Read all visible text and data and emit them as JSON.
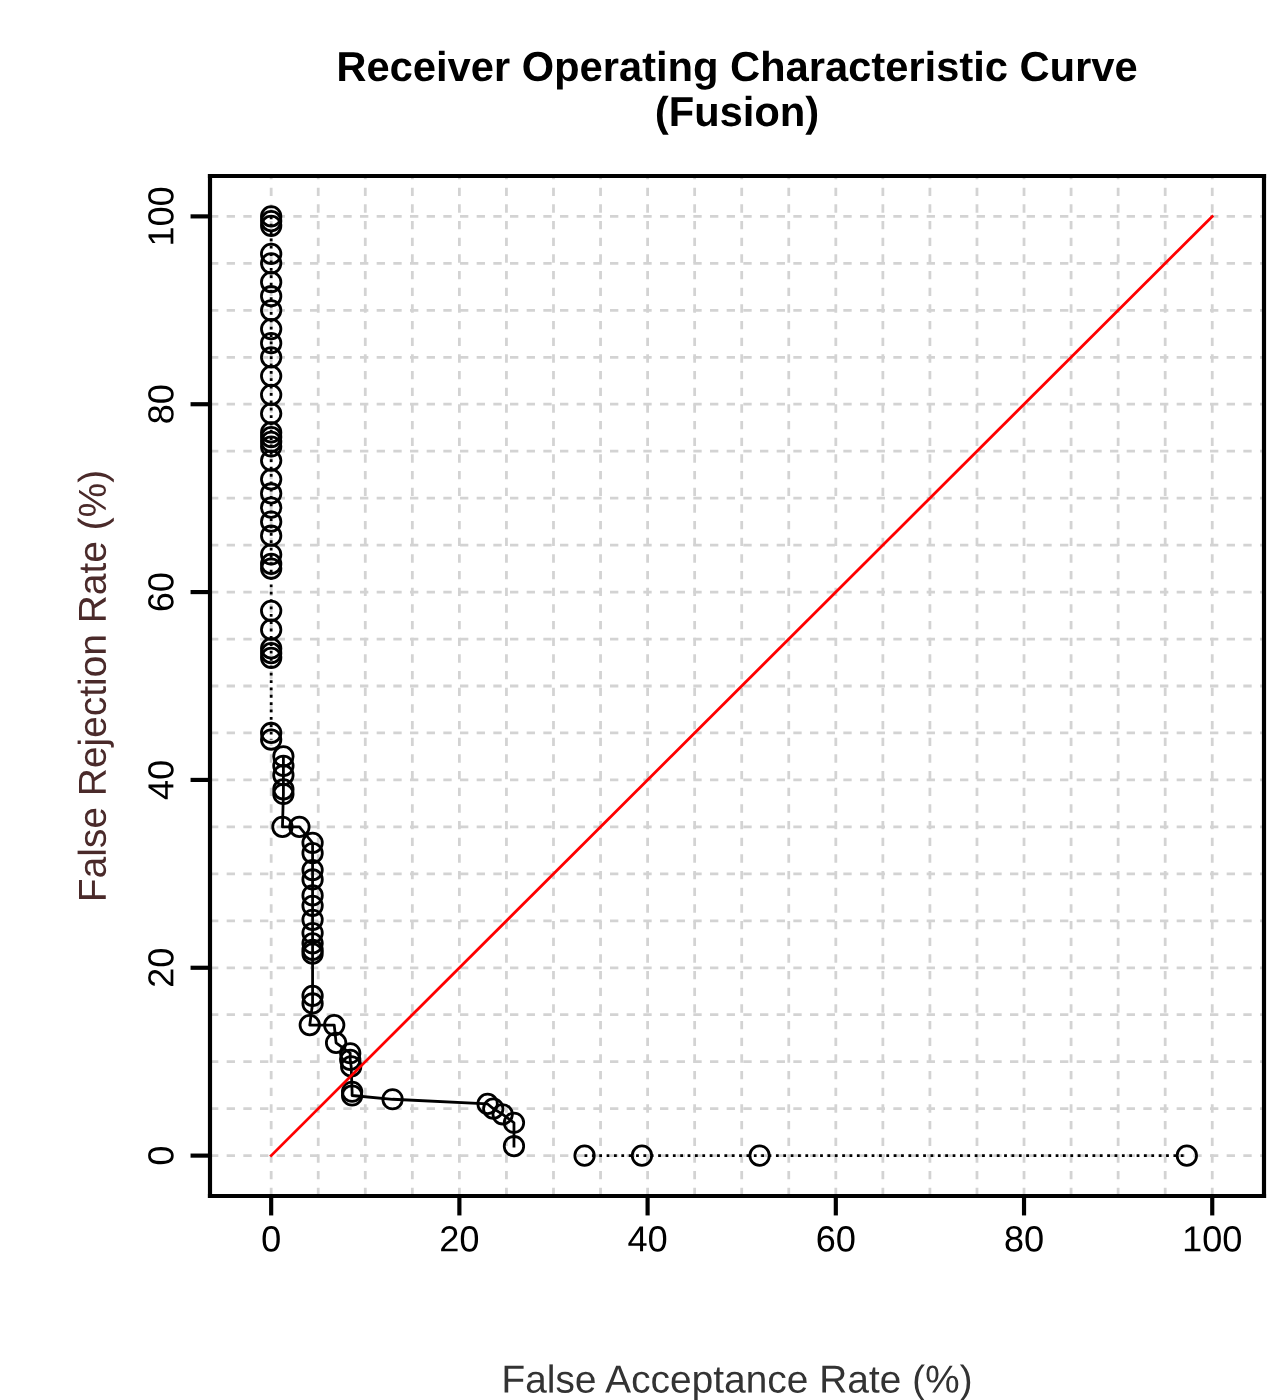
{
  "chart_data": {
    "type": "line",
    "title": "Receiver Operating Characteristic Curve\n(Fusion)",
    "xlabel": "False Acceptance Rate (%)",
    "ylabel": "False Rejection Rate (%)",
    "xlim": [
      -6.5,
      105.5
    ],
    "ylim": [
      -4.3,
      104.3
    ],
    "xticks": [
      0,
      {
        "value": 5,
        "label": null
      },
      {
        "value": 10,
        "label": null
      },
      {
        "value": 15,
        "label": null
      },
      20,
      {
        "value": 25,
        "label": null
      },
      {
        "value": 30,
        "label": null
      },
      {
        "value": 35,
        "label": null
      },
      40,
      {
        "value": 45,
        "label": null
      },
      {
        "value": 50,
        "label": null
      },
      {
        "value": 55,
        "label": null
      },
      60,
      {
        "value": 65,
        "label": null
      },
      {
        "value": 70,
        "label": null
      },
      {
        "value": 75,
        "label": null
      },
      80,
      {
        "value": 85,
        "label": null
      },
      {
        "value": 90,
        "label": null
      },
      {
        "value": 95,
        "label": null
      },
      100
    ],
    "yticks": [
      0,
      {
        "value": 5,
        "label": null
      },
      {
        "value": 10,
        "label": null
      },
      {
        "value": 15,
        "label": null
      },
      20,
      {
        "value": 25,
        "label": null
      },
      {
        "value": 30,
        "label": null
      },
      {
        "value": 35,
        "label": null
      },
      40,
      {
        "value": 45,
        "label": null
      },
      {
        "value": 50,
        "label": null
      },
      {
        "value": 55,
        "label": null
      },
      60,
      {
        "value": 65,
        "label": null
      },
      {
        "value": 70,
        "label": null
      },
      {
        "value": 75,
        "label": null
      },
      80,
      {
        "value": 85,
        "label": null
      },
      {
        "value": 90,
        "label": null
      },
      {
        "value": 95,
        "label": null
      },
      100
    ],
    "grid": true,
    "series": [
      {
        "color": "#000000",
        "line_style": "dotted",
        "marker": "circle",
        "x": [
          0,
          0,
          0,
          0,
          0,
          0,
          0,
          0,
          0,
          0,
          0,
          0,
          0,
          0,
          0,
          0,
          0,
          0,
          0,
          0,
          0,
          0,
          0,
          0,
          0,
          0,
          0,
          0,
          0,
          0,
          0,
          0,
          0,
          0
        ],
        "values": [
          100,
          99.5,
          99,
          96,
          95,
          93,
          91.5,
          90,
          88,
          86.5,
          85,
          83,
          81,
          79,
          77,
          76.5,
          76,
          75.5,
          74,
          72,
          70.5,
          69,
          67.5,
          66,
          64,
          63,
          62.5,
          58,
          56,
          54,
          53.5,
          53,
          45,
          44.3
        ]
      },
      {
        "color": "#000000",
        "line_style": "solid",
        "marker": "circle",
        "x": [
          1.3,
          1.3,
          1.3,
          1.3,
          1.3,
          1.2,
          3,
          4.4,
          4.4,
          4.4,
          4.4,
          4.4,
          4.4,
          4.4,
          4.4,
          4.4,
          4.4,
          4.4,
          4.4,
          4.4,
          4.1,
          6.7,
          6.9,
          8.4,
          8.4,
          8.5,
          8.6,
          8.6,
          12.9,
          23,
          23.6,
          24.6,
          25.8,
          25.8
        ],
        "values": [
          42.5,
          41.5,
          40.5,
          39,
          38.5,
          35,
          35,
          33.3,
          32.2,
          30.4,
          29.4,
          27.7,
          26.6,
          25.1,
          23.7,
          22.6,
          21.9,
          21.5,
          17,
          16.2,
          13.9,
          13.9,
          12,
          10.9,
          10.2,
          9.5,
          6.8,
          6.4,
          6,
          5.5,
          5,
          4.4,
          3.5,
          1
        ]
      },
      {
        "color": "#000000",
        "line_style": "dotted",
        "marker": "circle",
        "x": [
          33.3,
          39.4,
          51.9,
          97.3
        ],
        "values": [
          0,
          0,
          0,
          0
        ]
      },
      {
        "color": "#ff0000",
        "line_style": "solid",
        "marker": "none",
        "x": [
          0,
          100
        ],
        "values": [
          0,
          100
        ]
      }
    ]
  }
}
